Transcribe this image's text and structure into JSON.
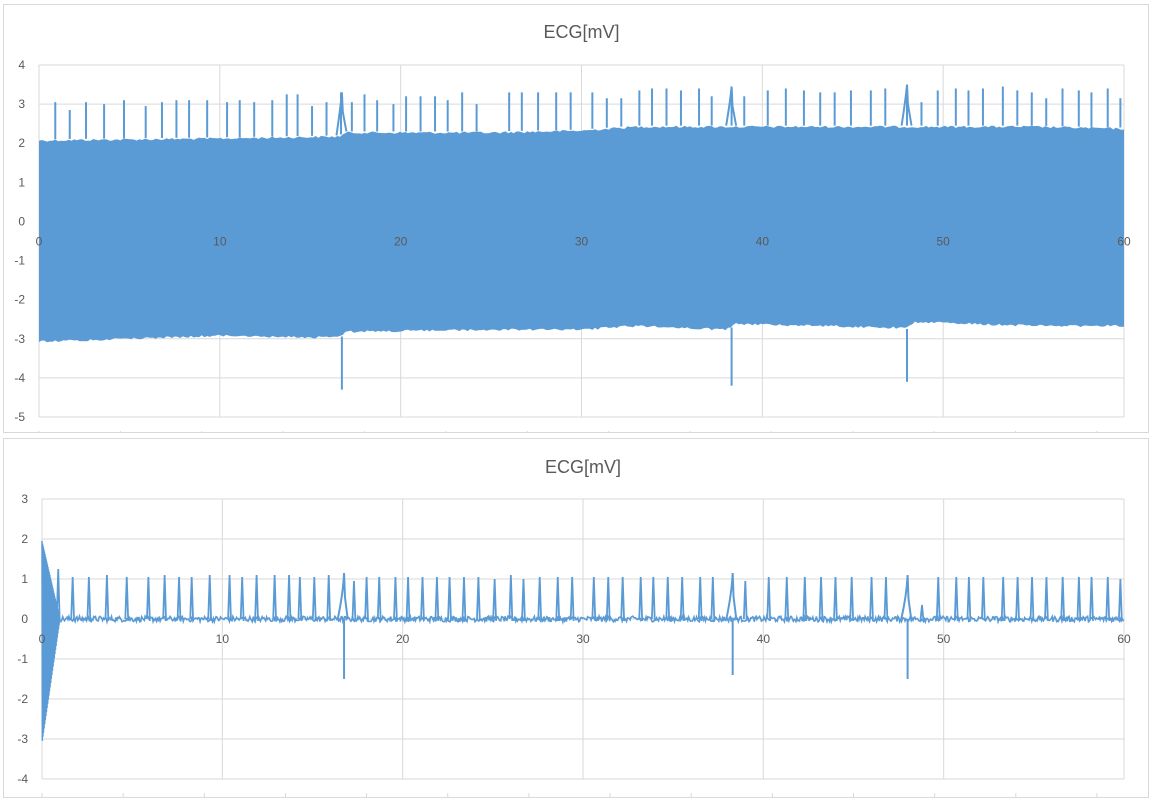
{
  "chart_data": [
    {
      "type": "line",
      "title": "ECG[mV]",
      "xlim": [
        0,
        60
      ],
      "ylim": [
        -5,
        4
      ],
      "x_ticks": [
        0,
        10,
        20,
        30,
        40,
        50,
        60
      ],
      "y_ticks": [
        4,
        3,
        2,
        1,
        0,
        -1,
        -2,
        -3,
        -4,
        -5
      ],
      "grid": true,
      "legend": "none",
      "color": "#5b9bd5",
      "series": [
        {
          "noise_band_upper": [
            [
              0,
              2.1
            ],
            [
              10,
              2.15
            ],
            [
              16.6,
              2.2
            ],
            [
              17,
              2.3
            ],
            [
              25,
              2.3
            ],
            [
              30,
              2.35
            ],
            [
              33,
              2.45
            ],
            [
              38,
              2.45
            ],
            [
              40,
              2.45
            ],
            [
              48,
              2.45
            ],
            [
              55,
              2.45
            ],
            [
              60,
              2.4
            ]
          ],
          "noise_band_lower": [
            [
              0,
              -3.1
            ],
            [
              10,
              -2.95
            ],
            [
              16.6,
              -3.0
            ],
            [
              17,
              -2.85
            ],
            [
              25,
              -2.8
            ],
            [
              30,
              -2.8
            ],
            [
              33,
              -2.7
            ],
            [
              38,
              -2.8
            ],
            [
              38.5,
              -2.65
            ],
            [
              48,
              -2.75
            ],
            [
              48.5,
              -2.6
            ],
            [
              55,
              -2.7
            ],
            [
              60,
              -2.7
            ]
          ],
          "r_peaks": [
            [
              0.9,
              3.05
            ],
            [
              1.7,
              2.85
            ],
            [
              2.6,
              3.05
            ],
            [
              3.6,
              3.0
            ],
            [
              4.7,
              3.1
            ],
            [
              5.9,
              2.95
            ],
            [
              6.8,
              3.05
            ],
            [
              7.6,
              3.1
            ],
            [
              8.3,
              3.1
            ],
            [
              9.3,
              3.1
            ],
            [
              10.4,
              3.05
            ],
            [
              11.1,
              3.1
            ],
            [
              11.9,
              3.05
            ],
            [
              12.9,
              3.1
            ],
            [
              13.7,
              3.25
            ],
            [
              14.3,
              3.25
            ],
            [
              15.1,
              2.95
            ],
            [
              15.9,
              3.05
            ],
            [
              16.7,
              3.3
            ],
            [
              17.3,
              3.05
            ],
            [
              18.0,
              3.25
            ],
            [
              18.7,
              3.1
            ],
            [
              19.6,
              3.0
            ],
            [
              20.3,
              3.2
            ],
            [
              21.1,
              3.2
            ],
            [
              21.9,
              3.2
            ],
            [
              22.6,
              3.1
            ],
            [
              23.4,
              3.3
            ],
            [
              24.2,
              3.0
            ],
            [
              26.0,
              3.3
            ],
            [
              26.7,
              3.3
            ],
            [
              27.6,
              3.3
            ],
            [
              28.6,
              3.3
            ],
            [
              29.4,
              3.3
            ],
            [
              30.6,
              3.3
            ],
            [
              31.4,
              3.15
            ],
            [
              32.2,
              3.15
            ],
            [
              33.2,
              3.35
            ],
            [
              33.9,
              3.4
            ],
            [
              34.7,
              3.4
            ],
            [
              35.5,
              3.35
            ],
            [
              36.5,
              3.4
            ],
            [
              37.2,
              3.2
            ],
            [
              38.3,
              3.4
            ],
            [
              39.0,
              3.2
            ],
            [
              40.3,
              3.35
            ],
            [
              41.3,
              3.4
            ],
            [
              42.3,
              3.35
            ],
            [
              43.2,
              3.3
            ],
            [
              44.0,
              3.3
            ],
            [
              44.9,
              3.35
            ],
            [
              46.0,
              3.35
            ],
            [
              46.8,
              3.4
            ],
            [
              48.0,
              3.5
            ],
            [
              48.8,
              3.05
            ],
            [
              49.7,
              3.35
            ],
            [
              50.7,
              3.4
            ],
            [
              51.4,
              3.35
            ],
            [
              52.2,
              3.4
            ],
            [
              53.3,
              3.45
            ],
            [
              54.1,
              3.35
            ],
            [
              54.9,
              3.3
            ],
            [
              55.7,
              3.15
            ],
            [
              56.6,
              3.4
            ],
            [
              57.5,
              3.35
            ],
            [
              58.2,
              3.3
            ],
            [
              59.1,
              3.4
            ],
            [
              59.8,
              3.15
            ]
          ],
          "events": [
            [
              16.75,
              -4.3,
              3.3
            ],
            [
              38.3,
              -4.2,
              3.45
            ],
            [
              48.0,
              -4.1,
              3.5
            ]
          ]
        }
      ]
    },
    {
      "type": "line",
      "title": "ECG[mV]",
      "xlim": [
        0,
        60
      ],
      "ylim": [
        -4,
        3
      ],
      "x_ticks": [
        0,
        10,
        20,
        30,
        40,
        50,
        60
      ],
      "y_ticks": [
        3,
        2,
        1,
        0,
        -1,
        -2,
        -3,
        -4
      ],
      "grid": true,
      "legend": "none",
      "color": "#5b9bd5",
      "series": [
        {
          "initial_transient": {
            "start": 0,
            "end": 1.0,
            "max": 1.95,
            "min": -3.1
          },
          "baseline": 0.0,
          "r_peaks": [
            [
              0.9,
              1.25
            ],
            [
              1.7,
              1.05
            ],
            [
              2.6,
              1.05
            ],
            [
              3.6,
              1.1
            ],
            [
              4.7,
              1.05
            ],
            [
              5.9,
              1.05
            ],
            [
              6.8,
              1.1
            ],
            [
              7.6,
              1.05
            ],
            [
              8.3,
              1.05
            ],
            [
              9.3,
              1.1
            ],
            [
              10.4,
              1.1
            ],
            [
              11.1,
              1.05
            ],
            [
              11.9,
              1.1
            ],
            [
              12.9,
              1.1
            ],
            [
              13.7,
              1.1
            ],
            [
              14.3,
              1.05
            ],
            [
              15.1,
              1.05
            ],
            [
              15.9,
              1.1
            ],
            [
              17.3,
              0.95
            ],
            [
              18.0,
              1.05
            ],
            [
              18.7,
              1.05
            ],
            [
              19.6,
              1.05
            ],
            [
              20.3,
              1.05
            ],
            [
              21.1,
              1.05
            ],
            [
              21.9,
              1.05
            ],
            [
              22.6,
              1.05
            ],
            [
              23.4,
              1.05
            ],
            [
              24.2,
              1.05
            ],
            [
              25.1,
              1.0
            ],
            [
              26.0,
              1.1
            ],
            [
              26.7,
              1.0
            ],
            [
              27.6,
              1.05
            ],
            [
              28.6,
              1.05
            ],
            [
              29.4,
              1.05
            ],
            [
              30.6,
              1.05
            ],
            [
              31.4,
              1.05
            ],
            [
              32.2,
              1.05
            ],
            [
              33.2,
              1.05
            ],
            [
              33.9,
              1.05
            ],
            [
              34.7,
              1.05
            ],
            [
              35.5,
              1.05
            ],
            [
              36.5,
              1.05
            ],
            [
              37.2,
              1.05
            ],
            [
              39.0,
              0.95
            ],
            [
              40.3,
              1.05
            ],
            [
              41.3,
              1.05
            ],
            [
              42.3,
              1.05
            ],
            [
              43.2,
              1.05
            ],
            [
              44.0,
              1.05
            ],
            [
              44.9,
              1.05
            ],
            [
              46.0,
              1.05
            ],
            [
              46.8,
              1.05
            ],
            [
              48.8,
              0.35
            ],
            [
              49.7,
              1.05
            ],
            [
              50.7,
              1.05
            ],
            [
              51.4,
              1.05
            ],
            [
              52.2,
              1.05
            ],
            [
              53.3,
              1.05
            ],
            [
              54.1,
              1.05
            ],
            [
              54.9,
              1.05
            ],
            [
              55.7,
              1.05
            ],
            [
              56.6,
              1.05
            ],
            [
              57.5,
              1.05
            ],
            [
              58.2,
              1.05
            ],
            [
              59.1,
              1.05
            ],
            [
              59.8,
              1.0
            ]
          ],
          "events": [
            [
              16.75,
              -1.5,
              1.15
            ],
            [
              38.3,
              -1.4,
              1.15
            ],
            [
              48.0,
              -1.5,
              1.1
            ]
          ]
        }
      ]
    }
  ]
}
